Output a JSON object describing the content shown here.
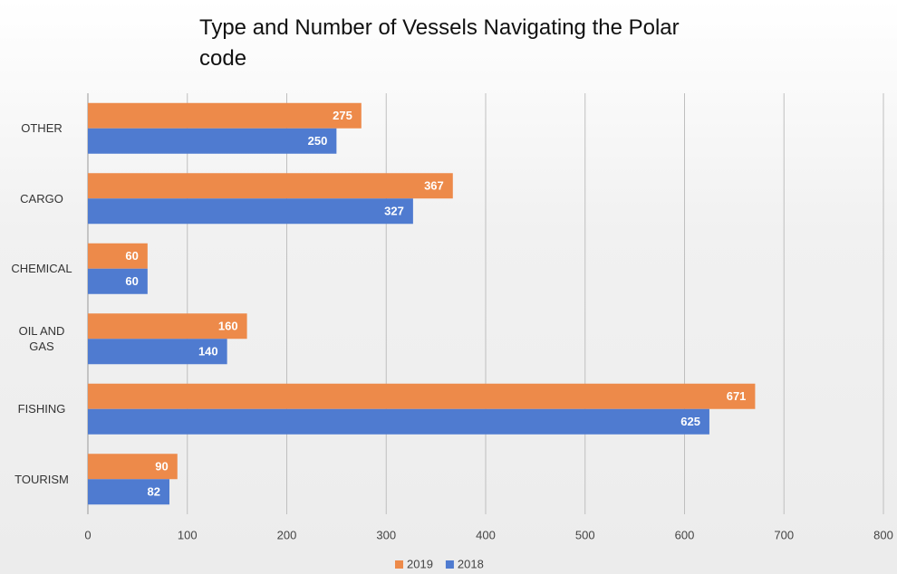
{
  "chart_data": {
    "type": "bar",
    "orientation": "horizontal",
    "title": "Type and Number  of Vessels Navigating the Polar code",
    "categories": [
      "OTHER",
      "CARGO",
      "CHEMICAL",
      "OIL AND GAS",
      "FISHING",
      "TOURISM"
    ],
    "series": [
      {
        "name": "2019",
        "color": "#ed8a4a",
        "values": [
          275,
          367,
          60,
          160,
          671,
          90
        ]
      },
      {
        "name": "2018",
        "color": "#4f7bd0",
        "values": [
          250,
          327,
          60,
          140,
          625,
          82
        ]
      }
    ],
    "xlim": [
      0,
      800
    ],
    "xticks": [
      0,
      100,
      200,
      300,
      400,
      500,
      600,
      700,
      800
    ],
    "grid": true,
    "legend": "bottom"
  }
}
